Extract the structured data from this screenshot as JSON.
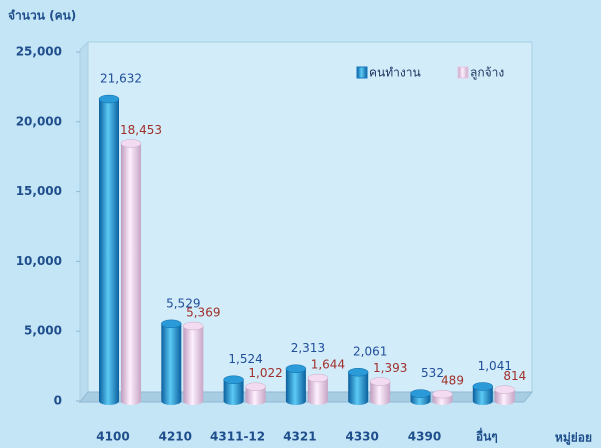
{
  "chart_data": {
    "type": "bar",
    "ylabel": "จำนวน (คน)",
    "xlabel": "หมู่ย่อย",
    "categories": [
      "4100",
      "4210",
      "4311-12",
      "4321",
      "4330",
      "4390",
      "อื่นๆ"
    ],
    "series": [
      {
        "name": "คนทำงาน",
        "color": "#1478c2",
        "values": [
          21632,
          5529,
          1524,
          2313,
          2061,
          532,
          1041
        ],
        "value_labels": [
          "21,632",
          "5,529",
          "1,524",
          "2,313",
          "2,061",
          "532",
          "1,041"
        ]
      },
      {
        "name": "ลูกจ้าง",
        "color": "#e6c6e4",
        "values": [
          18453,
          5369,
          1022,
          1644,
          1393,
          489,
          814
        ],
        "value_labels": [
          "18,453",
          "5,369",
          "1,022",
          "1,644",
          "1,393",
          "489",
          "814"
        ]
      }
    ],
    "ylim": [
      0,
      25000
    ],
    "yticks": [
      0,
      {
        "value": 5000,
        "label": "5,000"
      },
      {
        "value": 10000,
        "label": "10,000"
      },
      {
        "value": 15000,
        "label": "15,000"
      },
      {
        "value": 20000,
        "label": "20,000"
      },
      {
        "value": 25000,
        "label": "25,000"
      }
    ],
    "grid": false,
    "legend": "top-right"
  }
}
